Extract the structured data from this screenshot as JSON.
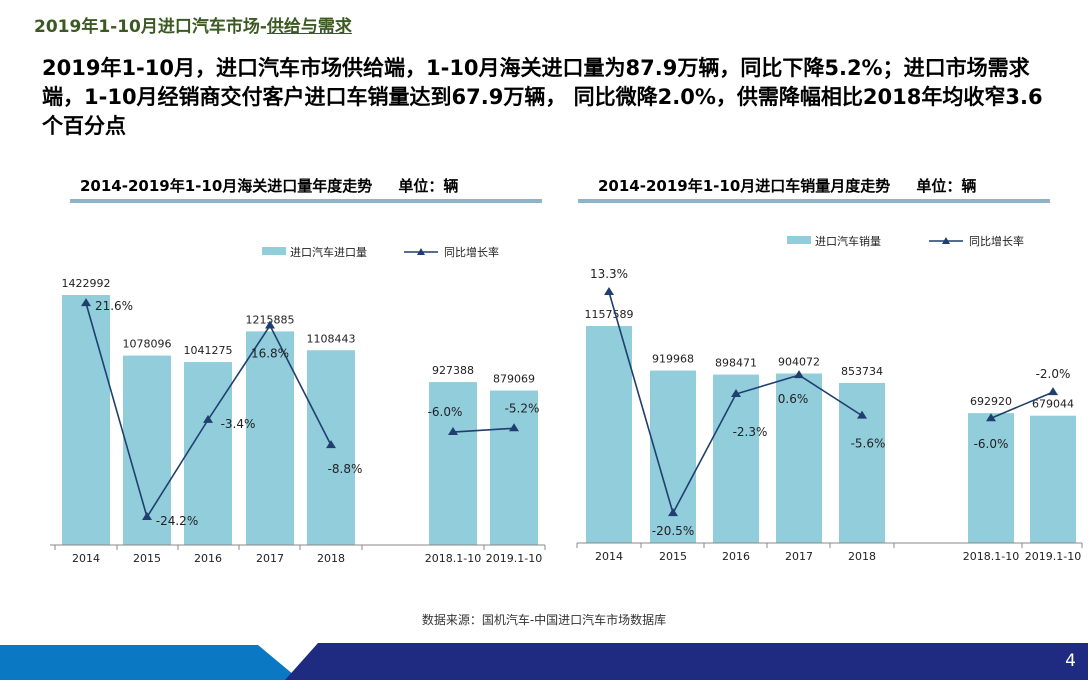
{
  "header": {
    "title_a": "2019年1-10月进口汽车市场-",
    "title_b": "供给与需求"
  },
  "summary": "2019年1-10月，进口汽车市场供给端，1-10月海关进口量为87.9万辆，同比下降5.2%；进口市场需求端，1-10月经销商交付客户进口车销量达到67.9万辆， 同比微降2.0%，供需降幅相比2018年均收窄3.6个百分点",
  "source": "数据来源：国机汽车-中国进口汽车市场数据库",
  "page_number": "4",
  "colors": {
    "bar": "#92cddc",
    "line": "#1f3f6e",
    "title": "#3b5a23"
  },
  "chart_data": [
    {
      "type": "bar+line",
      "title": "2014-2019年1-10月海关进口量年度走势",
      "unit": "单位：辆",
      "categories": [
        "2014",
        "2015",
        "2016",
        "2017",
        "2018",
        "2018.1-10",
        "2019.1-10"
      ],
      "series": [
        {
          "name": "进口汽车进口量",
          "type": "bar",
          "values": [
            1422992,
            1078096,
            1041275,
            1215885,
            1108443,
            927388,
            879069
          ],
          "labels": [
            "1422992",
            "1078096",
            "1041275",
            "1215885",
            "1108443",
            "927388",
            "879069"
          ]
        },
        {
          "name": "同比增长率",
          "type": "line",
          "values": [
            21.6,
            -24.2,
            -3.4,
            16.8,
            -8.8,
            -6.0,
            -5.2
          ],
          "labels": [
            "21.6%",
            "-24.2%",
            "-3.4%",
            "16.8%",
            "-8.8%",
            "-6.0%",
            "-5.2%"
          ],
          "segments": [
            [
              0,
              4
            ],
            [
              5,
              6
            ]
          ]
        }
      ],
      "legend": "top"
    },
    {
      "type": "bar+line",
      "title": "2014-2019年1-10月进口车销量月度走势",
      "unit": "单位：辆",
      "categories": [
        "2014",
        "2015",
        "2016",
        "2017",
        "2018",
        "2018.1-10",
        "2019.1-10"
      ],
      "series": [
        {
          "name": "进口汽车销量",
          "type": "bar",
          "values": [
            1157589,
            919968,
            898471,
            904072,
            853734,
            692920,
            679044
          ],
          "labels": [
            "1157589",
            "919968",
            "898471",
            "904072",
            "853734",
            "692920",
            "679044"
          ]
        },
        {
          "name": "同比增长率",
          "type": "line",
          "values": [
            13.3,
            -20.5,
            -2.3,
            0.6,
            -5.6,
            -6.0,
            -2.0
          ],
          "labels": [
            "13.3%",
            "-20.5%",
            "-2.3%",
            "0.6%",
            "-5.6%",
            "-6.0%",
            "-2.0%"
          ],
          "segments": [
            [
              0,
              4
            ],
            [
              5,
              6
            ]
          ]
        }
      ],
      "legend": "top"
    }
  ]
}
